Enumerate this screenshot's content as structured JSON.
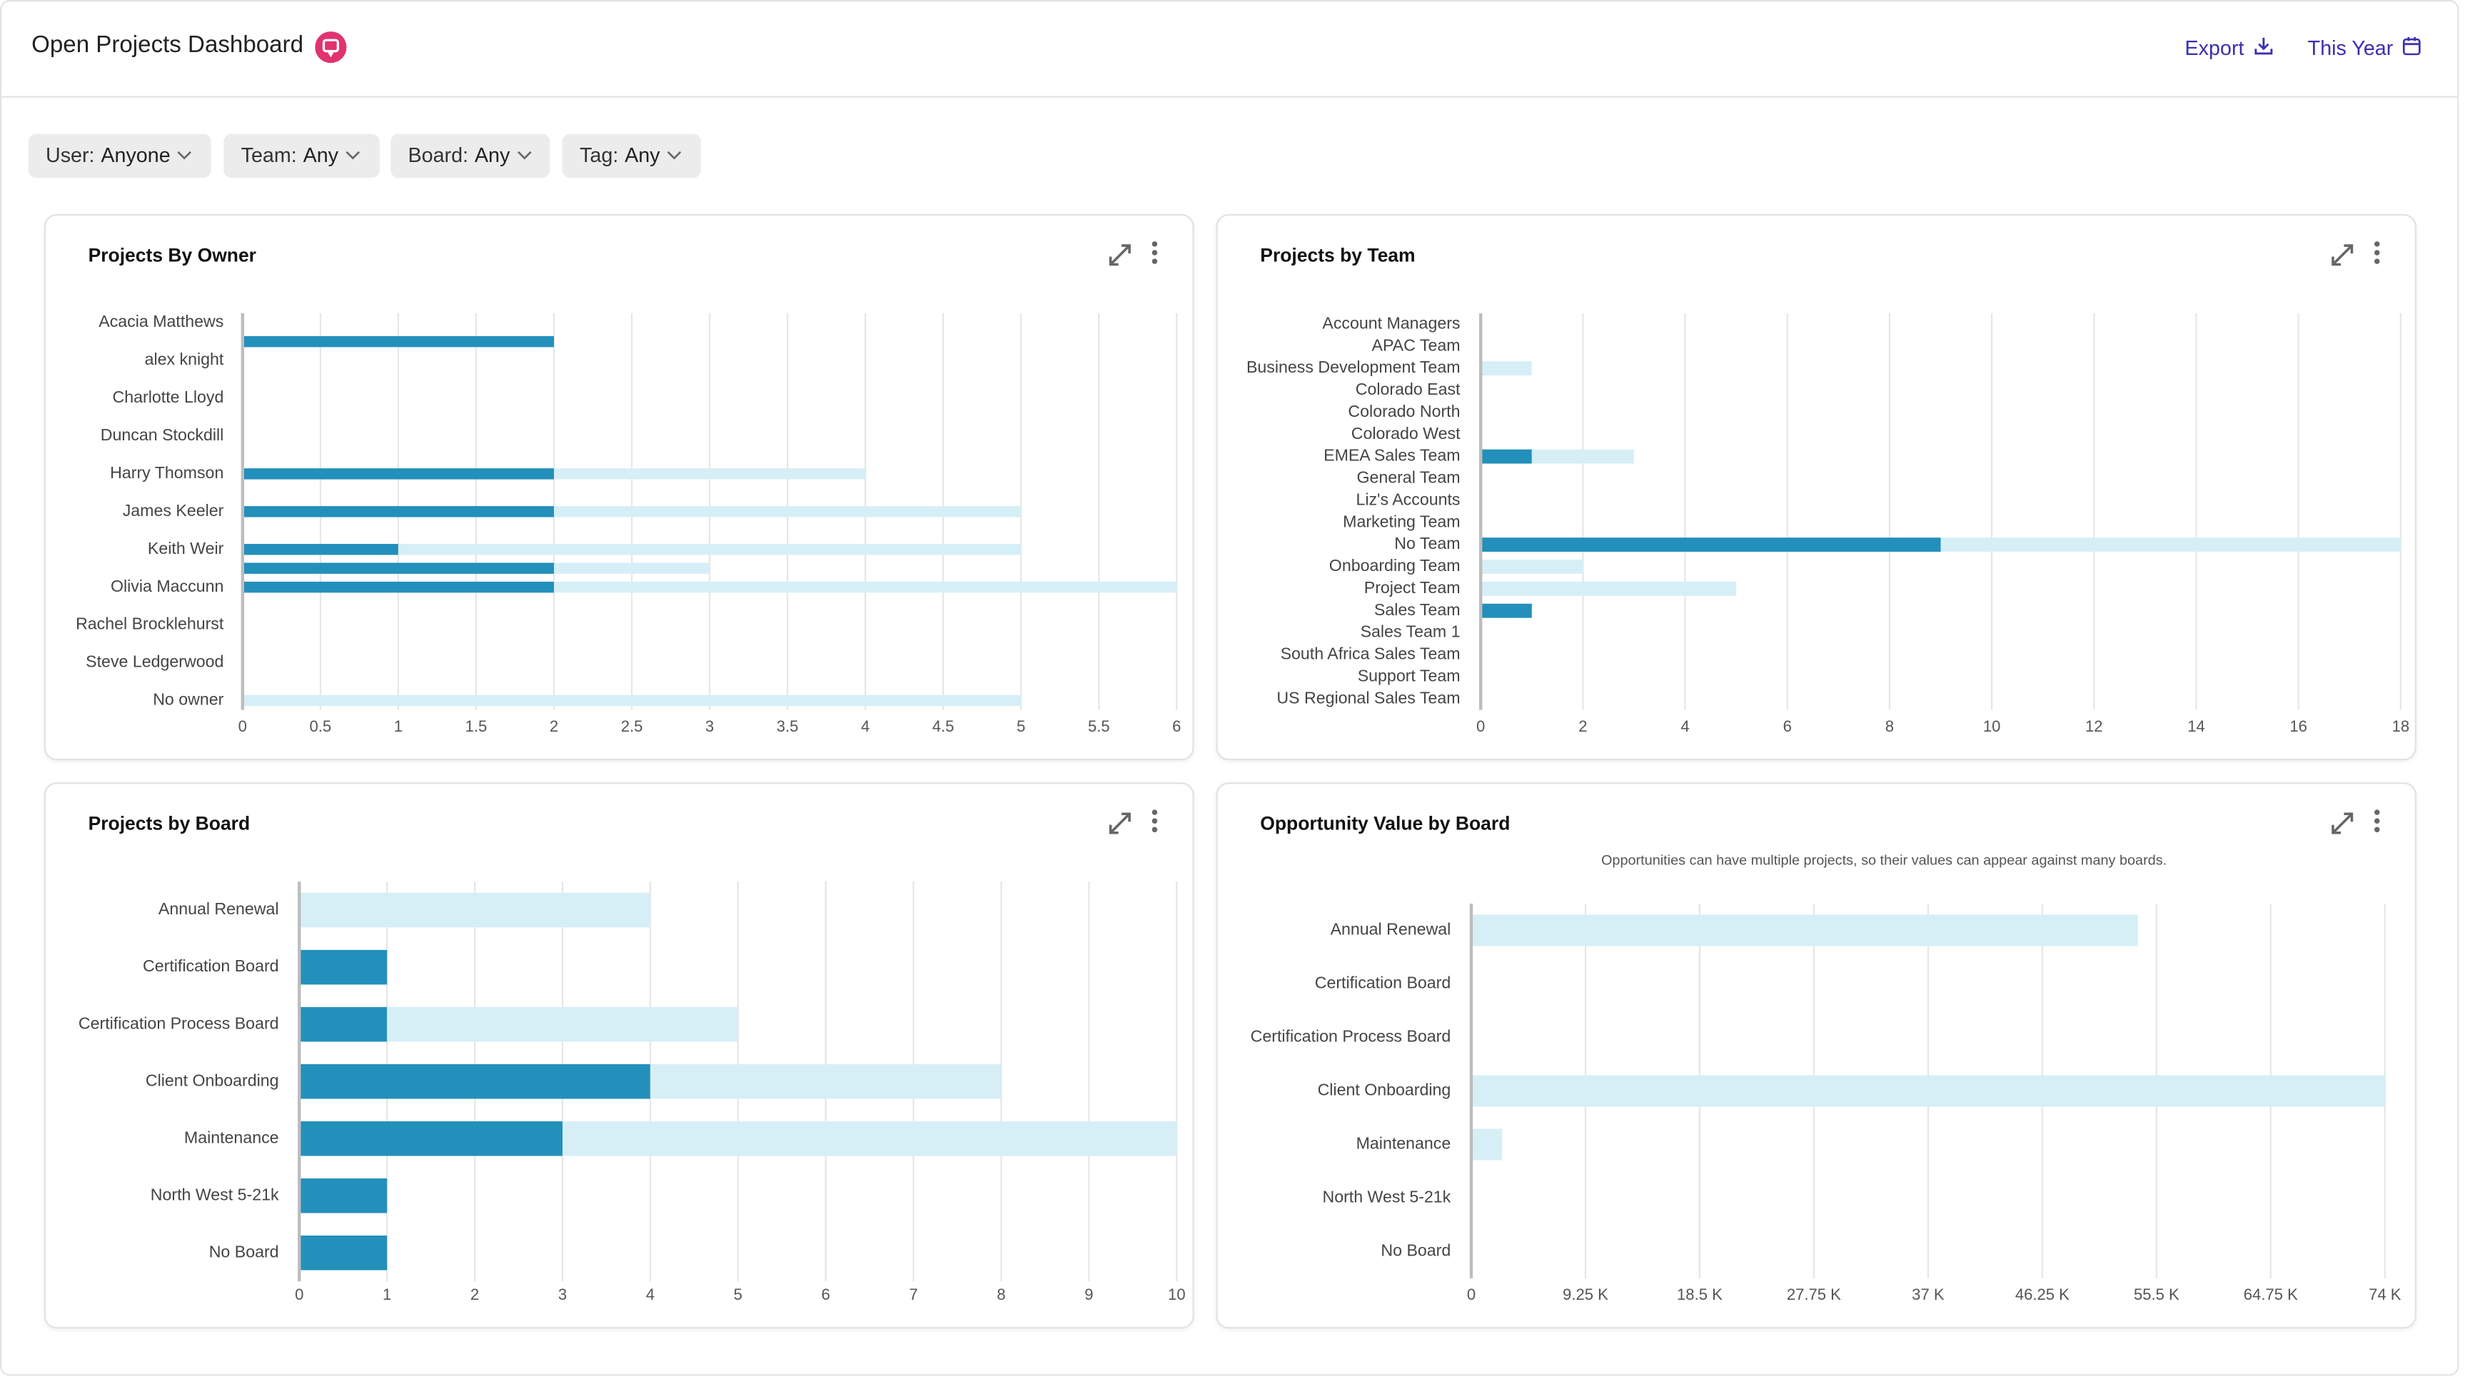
{
  "header": {
    "title": "Open Projects Dashboard",
    "actions": [
      "Export",
      "This Year"
    ]
  },
  "filters": [
    {
      "label": "User:",
      "value": "Anyone"
    },
    {
      "label": "Team:",
      "value": "Any"
    },
    {
      "label": "Board:",
      "value": "Any"
    },
    {
      "label": "Tag:",
      "value": "Any"
    }
  ],
  "chart_data": [
    {
      "type": "bar",
      "orientation": "horizontal",
      "stacked": true,
      "grid": true,
      "title": "Projects By Owner",
      "categories": [
        "Acacia Matthews",
        null,
        "alex knight",
        null,
        "Charlotte Lloyd",
        null,
        "Duncan Stockdill",
        null,
        "Harry Thomson",
        null,
        "James Keeler",
        null,
        "Keith Weir",
        null,
        "Olivia Maccunn",
        null,
        "Rachel Brocklehurst",
        null,
        "Steve Ledgerwood",
        null,
        "No owner"
      ],
      "series": [
        {
          "color": "#2390bb",
          "values": [
            0,
            2,
            0,
            0,
            0,
            0,
            0,
            0,
            2,
            0,
            2,
            0,
            1,
            2,
            2,
            0,
            0,
            0,
            0,
            0,
            0
          ]
        },
        {
          "color": "#d6eff7",
          "values": [
            0,
            0,
            0,
            0,
            0,
            0,
            0,
            0,
            2,
            0,
            3,
            0,
            4,
            1,
            4,
            0,
            0,
            0,
            0,
            0,
            5
          ]
        }
      ],
      "xlim": [
        0,
        6
      ],
      "xticks": [
        0,
        0.5,
        1,
        1.5,
        2,
        2.5,
        3,
        3.5,
        4,
        4.5,
        5,
        5.5,
        6
      ]
    },
    {
      "type": "bar",
      "orientation": "horizontal",
      "stacked": true,
      "grid": true,
      "title": "Projects by Team",
      "categories": [
        "Account Managers",
        "APAC Team",
        "Business Development Team",
        "Colorado East",
        "Colorado North",
        "Colorado West",
        "EMEA Sales Team",
        "General Team",
        "Liz's Accounts",
        "Marketing Team",
        "No Team",
        "Onboarding Team",
        "Project Team",
        "Sales Team",
        "Sales Team 1",
        "South Africa Sales Team",
        "Support Team",
        "US Regional Sales Team"
      ],
      "series": [
        {
          "color": "#2390bb",
          "values": [
            0,
            0,
            0,
            0,
            0,
            0,
            1,
            0,
            0,
            0,
            9,
            0,
            0,
            1,
            0,
            0,
            0,
            0
          ]
        },
        {
          "color": "#d6eff7",
          "values": [
            0,
            0,
            1,
            0,
            0,
            0,
            2,
            0,
            0,
            0,
            9,
            2,
            5,
            0,
            0,
            0,
            0,
            0
          ]
        }
      ],
      "xlim": [
        0,
        18
      ],
      "xticks": [
        0,
        2,
        4,
        6,
        8,
        10,
        12,
        14,
        16,
        18
      ]
    },
    {
      "type": "bar",
      "orientation": "horizontal",
      "stacked": true,
      "grid": true,
      "title": "Projects by Board",
      "categories": [
        "Annual Renewal",
        "Certification Board",
        "Certification Process Board",
        "Client Onboarding",
        "Maintenance",
        "North West 5-21k",
        "No Board"
      ],
      "series": [
        {
          "color": "#2390bb",
          "values": [
            0,
            1,
            1,
            4,
            3,
            1,
            1
          ]
        },
        {
          "color": "#d6eff7",
          "values": [
            4,
            0,
            4,
            4,
            7,
            0,
            0
          ]
        }
      ],
      "xlim": [
        0,
        10
      ],
      "xticks": [
        0,
        1,
        2,
        3,
        4,
        5,
        6,
        7,
        8,
        9,
        10
      ]
    },
    {
      "type": "bar",
      "orientation": "horizontal",
      "stacked": true,
      "grid": true,
      "title": "Opportunity Value by Board",
      "subtitle": "Opportunities can have multiple projects, so their values can appear against many boards.",
      "categories": [
        "Annual Renewal",
        "Certification Board",
        "Certification Process Board",
        "Client Onboarding",
        "Maintenance",
        "North West 5-21k",
        "No Board"
      ],
      "series": [
        {
          "color": "#d6eff7",
          "values": [
            54000,
            0,
            0,
            74000,
            2500,
            0,
            0
          ]
        }
      ],
      "xlim": [
        0,
        74000
      ],
      "xticks": [
        0,
        {
          "value": 9250,
          "label": "9.25 K"
        },
        {
          "value": 18500,
          "label": "18.5 K"
        },
        {
          "value": 27750,
          "label": "27.75 K"
        },
        {
          "value": 37000,
          "label": "37 K"
        },
        {
          "value": 46250,
          "label": "46.25 K"
        },
        {
          "value": 55500,
          "label": "55.5 K"
        },
        {
          "value": 64750,
          "label": "64.75 K"
        },
        {
          "value": 74000,
          "label": "74 K"
        }
      ]
    }
  ]
}
